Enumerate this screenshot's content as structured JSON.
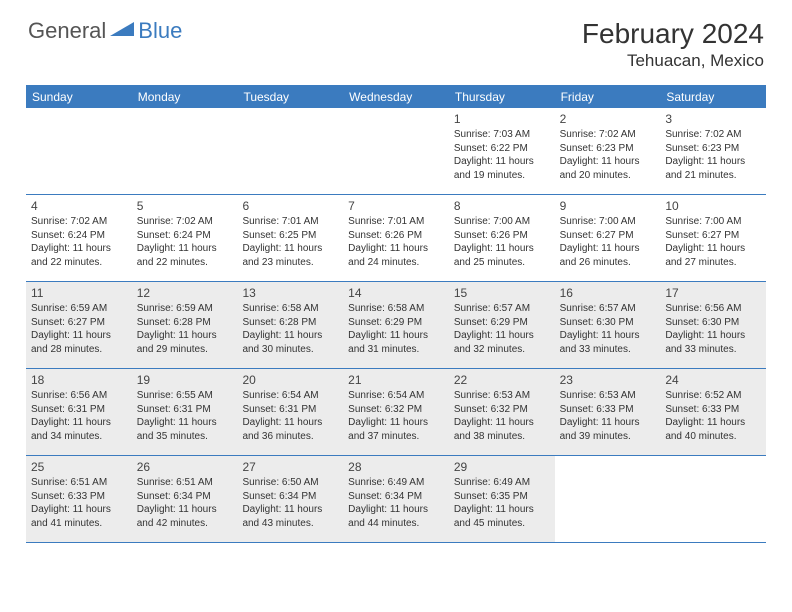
{
  "logo": {
    "general": "General",
    "blue": "Blue"
  },
  "title": "February 2024",
  "location": "Tehuacan, Mexico",
  "dayHeaders": [
    "Sunday",
    "Monday",
    "Tuesday",
    "Wednesday",
    "Thursday",
    "Friday",
    "Saturday"
  ],
  "colors": {
    "accent": "#3b7bbf",
    "shade": "#ececec",
    "text": "#333333",
    "background": "#ffffff"
  },
  "weeks": [
    [
      {
        "empty": true
      },
      {
        "empty": true
      },
      {
        "empty": true
      },
      {
        "empty": true
      },
      {
        "day": "1",
        "sunrise": "Sunrise: 7:03 AM",
        "sunset": "Sunset: 6:22 PM",
        "daylight": "Daylight: 11 hours and 19 minutes."
      },
      {
        "day": "2",
        "sunrise": "Sunrise: 7:02 AM",
        "sunset": "Sunset: 6:23 PM",
        "daylight": "Daylight: 11 hours and 20 minutes."
      },
      {
        "day": "3",
        "sunrise": "Sunrise: 7:02 AM",
        "sunset": "Sunset: 6:23 PM",
        "daylight": "Daylight: 11 hours and 21 minutes."
      }
    ],
    [
      {
        "day": "4",
        "sunrise": "Sunrise: 7:02 AM",
        "sunset": "Sunset: 6:24 PM",
        "daylight": "Daylight: 11 hours and 22 minutes."
      },
      {
        "day": "5",
        "sunrise": "Sunrise: 7:02 AM",
        "sunset": "Sunset: 6:24 PM",
        "daylight": "Daylight: 11 hours and 22 minutes."
      },
      {
        "day": "6",
        "sunrise": "Sunrise: 7:01 AM",
        "sunset": "Sunset: 6:25 PM",
        "daylight": "Daylight: 11 hours and 23 minutes."
      },
      {
        "day": "7",
        "sunrise": "Sunrise: 7:01 AM",
        "sunset": "Sunset: 6:26 PM",
        "daylight": "Daylight: 11 hours and 24 minutes."
      },
      {
        "day": "8",
        "sunrise": "Sunrise: 7:00 AM",
        "sunset": "Sunset: 6:26 PM",
        "daylight": "Daylight: 11 hours and 25 minutes."
      },
      {
        "day": "9",
        "sunrise": "Sunrise: 7:00 AM",
        "sunset": "Sunset: 6:27 PM",
        "daylight": "Daylight: 11 hours and 26 minutes."
      },
      {
        "day": "10",
        "sunrise": "Sunrise: 7:00 AM",
        "sunset": "Sunset: 6:27 PM",
        "daylight": "Daylight: 11 hours and 27 minutes."
      }
    ],
    [
      {
        "day": "11",
        "sunrise": "Sunrise: 6:59 AM",
        "sunset": "Sunset: 6:27 PM",
        "daylight": "Daylight: 11 hours and 28 minutes.",
        "shade": true
      },
      {
        "day": "12",
        "sunrise": "Sunrise: 6:59 AM",
        "sunset": "Sunset: 6:28 PM",
        "daylight": "Daylight: 11 hours and 29 minutes.",
        "shade": true
      },
      {
        "day": "13",
        "sunrise": "Sunrise: 6:58 AM",
        "sunset": "Sunset: 6:28 PM",
        "daylight": "Daylight: 11 hours and 30 minutes.",
        "shade": true
      },
      {
        "day": "14",
        "sunrise": "Sunrise: 6:58 AM",
        "sunset": "Sunset: 6:29 PM",
        "daylight": "Daylight: 11 hours and 31 minutes.",
        "shade": true
      },
      {
        "day": "15",
        "sunrise": "Sunrise: 6:57 AM",
        "sunset": "Sunset: 6:29 PM",
        "daylight": "Daylight: 11 hours and 32 minutes.",
        "shade": true
      },
      {
        "day": "16",
        "sunrise": "Sunrise: 6:57 AM",
        "sunset": "Sunset: 6:30 PM",
        "daylight": "Daylight: 11 hours and 33 minutes.",
        "shade": true
      },
      {
        "day": "17",
        "sunrise": "Sunrise: 6:56 AM",
        "sunset": "Sunset: 6:30 PM",
        "daylight": "Daylight: 11 hours and 33 minutes.",
        "shade": true
      }
    ],
    [
      {
        "day": "18",
        "sunrise": "Sunrise: 6:56 AM",
        "sunset": "Sunset: 6:31 PM",
        "daylight": "Daylight: 11 hours and 34 minutes.",
        "shade": true
      },
      {
        "day": "19",
        "sunrise": "Sunrise: 6:55 AM",
        "sunset": "Sunset: 6:31 PM",
        "daylight": "Daylight: 11 hours and 35 minutes.",
        "shade": true
      },
      {
        "day": "20",
        "sunrise": "Sunrise: 6:54 AM",
        "sunset": "Sunset: 6:31 PM",
        "daylight": "Daylight: 11 hours and 36 minutes.",
        "shade": true
      },
      {
        "day": "21",
        "sunrise": "Sunrise: 6:54 AM",
        "sunset": "Sunset: 6:32 PM",
        "daylight": "Daylight: 11 hours and 37 minutes.",
        "shade": true
      },
      {
        "day": "22",
        "sunrise": "Sunrise: 6:53 AM",
        "sunset": "Sunset: 6:32 PM",
        "daylight": "Daylight: 11 hours and 38 minutes.",
        "shade": true
      },
      {
        "day": "23",
        "sunrise": "Sunrise: 6:53 AM",
        "sunset": "Sunset: 6:33 PM",
        "daylight": "Daylight: 11 hours and 39 minutes.",
        "shade": true
      },
      {
        "day": "24",
        "sunrise": "Sunrise: 6:52 AM",
        "sunset": "Sunset: 6:33 PM",
        "daylight": "Daylight: 11 hours and 40 minutes.",
        "shade": true
      }
    ],
    [
      {
        "day": "25",
        "sunrise": "Sunrise: 6:51 AM",
        "sunset": "Sunset: 6:33 PM",
        "daylight": "Daylight: 11 hours and 41 minutes.",
        "shade": true
      },
      {
        "day": "26",
        "sunrise": "Sunrise: 6:51 AM",
        "sunset": "Sunset: 6:34 PM",
        "daylight": "Daylight: 11 hours and 42 minutes.",
        "shade": true
      },
      {
        "day": "27",
        "sunrise": "Sunrise: 6:50 AM",
        "sunset": "Sunset: 6:34 PM",
        "daylight": "Daylight: 11 hours and 43 minutes.",
        "shade": true
      },
      {
        "day": "28",
        "sunrise": "Sunrise: 6:49 AM",
        "sunset": "Sunset: 6:34 PM",
        "daylight": "Daylight: 11 hours and 44 minutes.",
        "shade": true
      },
      {
        "day": "29",
        "sunrise": "Sunrise: 6:49 AM",
        "sunset": "Sunset: 6:35 PM",
        "daylight": "Daylight: 11 hours and 45 minutes.",
        "shade": true
      },
      {
        "empty": true
      },
      {
        "empty": true
      }
    ]
  ]
}
